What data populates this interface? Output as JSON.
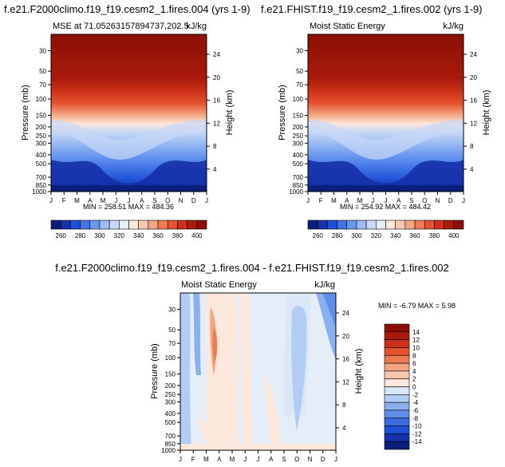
{
  "chart_data": [
    {
      "type": "heatmap",
      "title": "f.e21.F2000climo.f19_f19.cesm2_1.fires.004 (yrs 1-9)",
      "subtitle_left": "MSE at 71.05263157894737,202.5",
      "units": "kJ/kg",
      "ylabel": "Pressure (mb)",
      "ylabel_right": "Height (km)",
      "stats": "MIN = 258.51   MAX = 484.36",
      "min": 258.51,
      "max": 484.36
    },
    {
      "type": "heatmap",
      "title": "f.e21.FHIST.f19_f19.cesm2_1.fires.002 (yrs 1-9)",
      "subtitle_left": "Moist Static Energy",
      "units": "kJ/kg",
      "ylabel": "Pressure (mb)",
      "ylabel_right": "Height (km)",
      "stats": "MIN = 254.92   MAX = 484.42",
      "min": 254.92,
      "max": 484.42
    },
    {
      "type": "heatmap",
      "title": "f.e21.F2000climo.f19_f19.cesm2_1.fires.004 - f.e21.FHIST.f19_f19.cesm2_1.fires.002",
      "subtitle_left": "Moist Static Energy",
      "units": "kJ/kg",
      "ylabel": "Pressure (mb)",
      "ylabel_right": "Height (km)",
      "stats": "MIN = -6.79   MAX =  5.98",
      "min": -6.79,
      "max": 5.98
    }
  ],
  "x_ticks": [
    "J",
    "F",
    "M",
    "A",
    "M",
    "J",
    "J",
    "A",
    "S",
    "O",
    "N",
    "D",
    "J"
  ],
  "pressure_ticks": [
    "30",
    "50",
    "70",
    "100",
    "150",
    "200",
    "250",
    "300",
    "400",
    "500",
    "700",
    "850",
    "1000"
  ],
  "height_ticks": [
    "24",
    "20",
    "16",
    "12",
    "8",
    "4"
  ],
  "colorbar_abs": {
    "labels": [
      "260",
      "280",
      "300",
      "320",
      "340",
      "360",
      "380",
      "400"
    ],
    "colors": [
      "#0a1f7a",
      "#1530a8",
      "#1f4fd4",
      "#3f74e6",
      "#6b98ef",
      "#9cbcf2",
      "#c7d9f6",
      "#e5eef8",
      "#fbe7dc",
      "#f7c8ae",
      "#f3a581",
      "#ee7b55",
      "#e4532f",
      "#cc3018",
      "#a91a0c",
      "#8b0f06"
    ]
  },
  "colorbar_diff": {
    "labels": [
      "14",
      "12",
      "10",
      "8",
      "6",
      "4",
      "2",
      "0",
      "-2",
      "-4",
      "-6",
      "-8",
      "-10",
      "-12",
      "-14"
    ],
    "colors": [
      "#8b0f06",
      "#a91a0c",
      "#cc3018",
      "#e4532f",
      "#ee7b55",
      "#f3a581",
      "#f7c8ae",
      "#fbe7dc",
      "#d9e7f7",
      "#b3ccf3",
      "#8ab0ef",
      "#5f8fea",
      "#3c6ddf",
      "#1f4fd4",
      "#1530a8",
      "#0a1f7a"
    ]
  }
}
